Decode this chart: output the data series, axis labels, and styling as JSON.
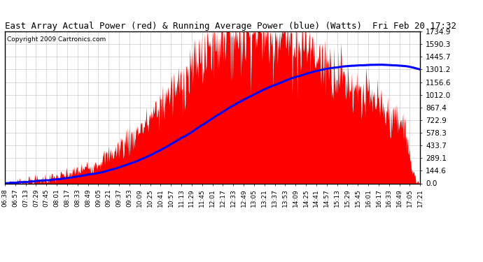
{
  "title": "East Array Actual Power (red) & Running Average Power (blue) (Watts)  Fri Feb 20 17:32",
  "copyright": "Copyright 2009 Cartronics.com",
  "yticks": [
    0.0,
    144.6,
    289.1,
    433.7,
    578.3,
    722.9,
    867.4,
    1012.0,
    1156.6,
    1301.2,
    1445.7,
    1590.3,
    1734.9
  ],
  "ymax": 1734.9,
  "ymin": 0.0,
  "bg_color": "#ffffff",
  "plot_bg_color": "#ffffff",
  "grid_color": "#aaaaaa",
  "fill_color": "#ff0000",
  "avg_line_color": "#0000ff",
  "xtick_labels": [
    "06:38",
    "06:57",
    "07:13",
    "07:29",
    "07:45",
    "08:01",
    "08:17",
    "08:33",
    "08:49",
    "09:05",
    "09:21",
    "09:37",
    "09:53",
    "10:09",
    "10:25",
    "10:41",
    "10:57",
    "11:13",
    "11:29",
    "11:45",
    "12:01",
    "12:17",
    "12:33",
    "12:49",
    "13:05",
    "13:21",
    "13:37",
    "13:53",
    "14:09",
    "14:25",
    "14:41",
    "14:57",
    "15:13",
    "15:29",
    "15:45",
    "16:01",
    "16:17",
    "16:33",
    "16:49",
    "17:05",
    "17:21"
  ],
  "n_points": 650,
  "start_hour": 6.633,
  "end_hour": 17.533,
  "peak_hour": 13.08,
  "peak_power": 1734.9,
  "avg_peak_hour": 13.08,
  "avg_peak_power": 1156.6,
  "title_fontsize": 9,
  "copyright_fontsize": 6.5,
  "ytick_fontsize": 7.5,
  "xtick_fontsize": 6.5
}
